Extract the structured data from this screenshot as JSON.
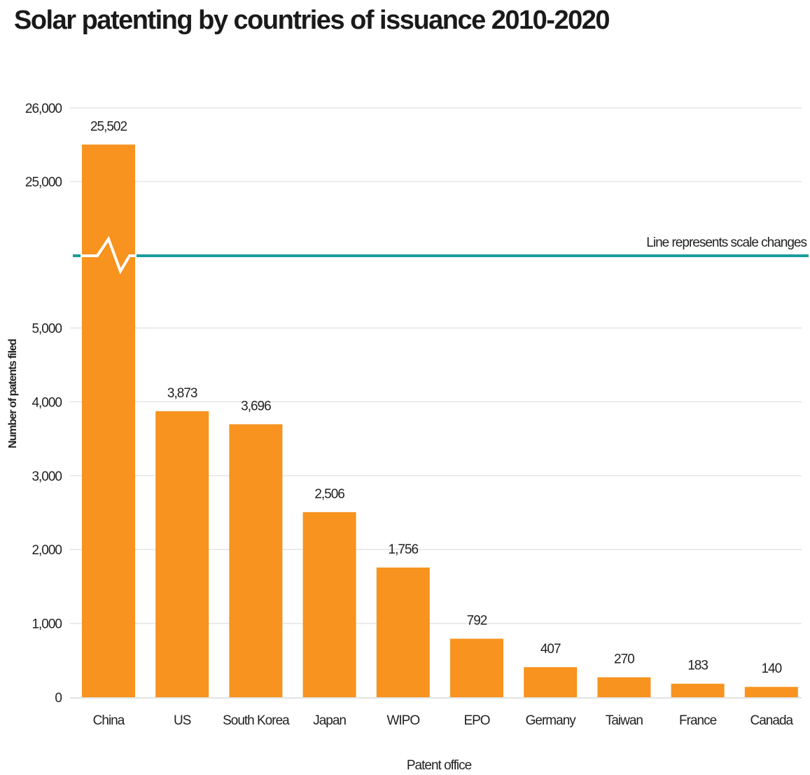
{
  "chart_data": {
    "type": "bar",
    "title": "Solar patenting by countries of issuance 2010-2020",
    "xlabel": "Patent office",
    "ylabel": "Number of patents filed",
    "categories": [
      "China",
      "US",
      "South Korea",
      "Japan",
      "WIPO",
      "EPO",
      "Germany",
      "Taiwan",
      "France",
      "Canada"
    ],
    "values": [
      25502,
      3873,
      3696,
      2506,
      1756,
      792,
      407,
      270,
      183,
      140
    ],
    "value_labels": [
      "25,502",
      "3,873",
      "3,696",
      "2,506",
      "1,756",
      "792",
      "407",
      "270",
      "183",
      "140"
    ],
    "y_axis": {
      "scale": "broken",
      "lower_range": [
        0,
        5000
      ],
      "upper_range": [
        25000,
        26000
      ],
      "lower_ticks": [
        0,
        1000,
        2000,
        3000,
        4000,
        5000
      ],
      "lower_tick_labels": [
        "0",
        "1,000",
        "2,000",
        "3,000",
        "4,000",
        "5,000"
      ],
      "upper_ticks": [
        25000,
        26000
      ],
      "upper_tick_labels": [
        "25,000",
        "26,000"
      ]
    },
    "annotation": "Line represents scale changes",
    "grid": true,
    "legend": "none",
    "colors": {
      "bar": "#f7931e",
      "scale_break_line": "#1a9e9a",
      "grid": "#e5e5e5"
    }
  }
}
